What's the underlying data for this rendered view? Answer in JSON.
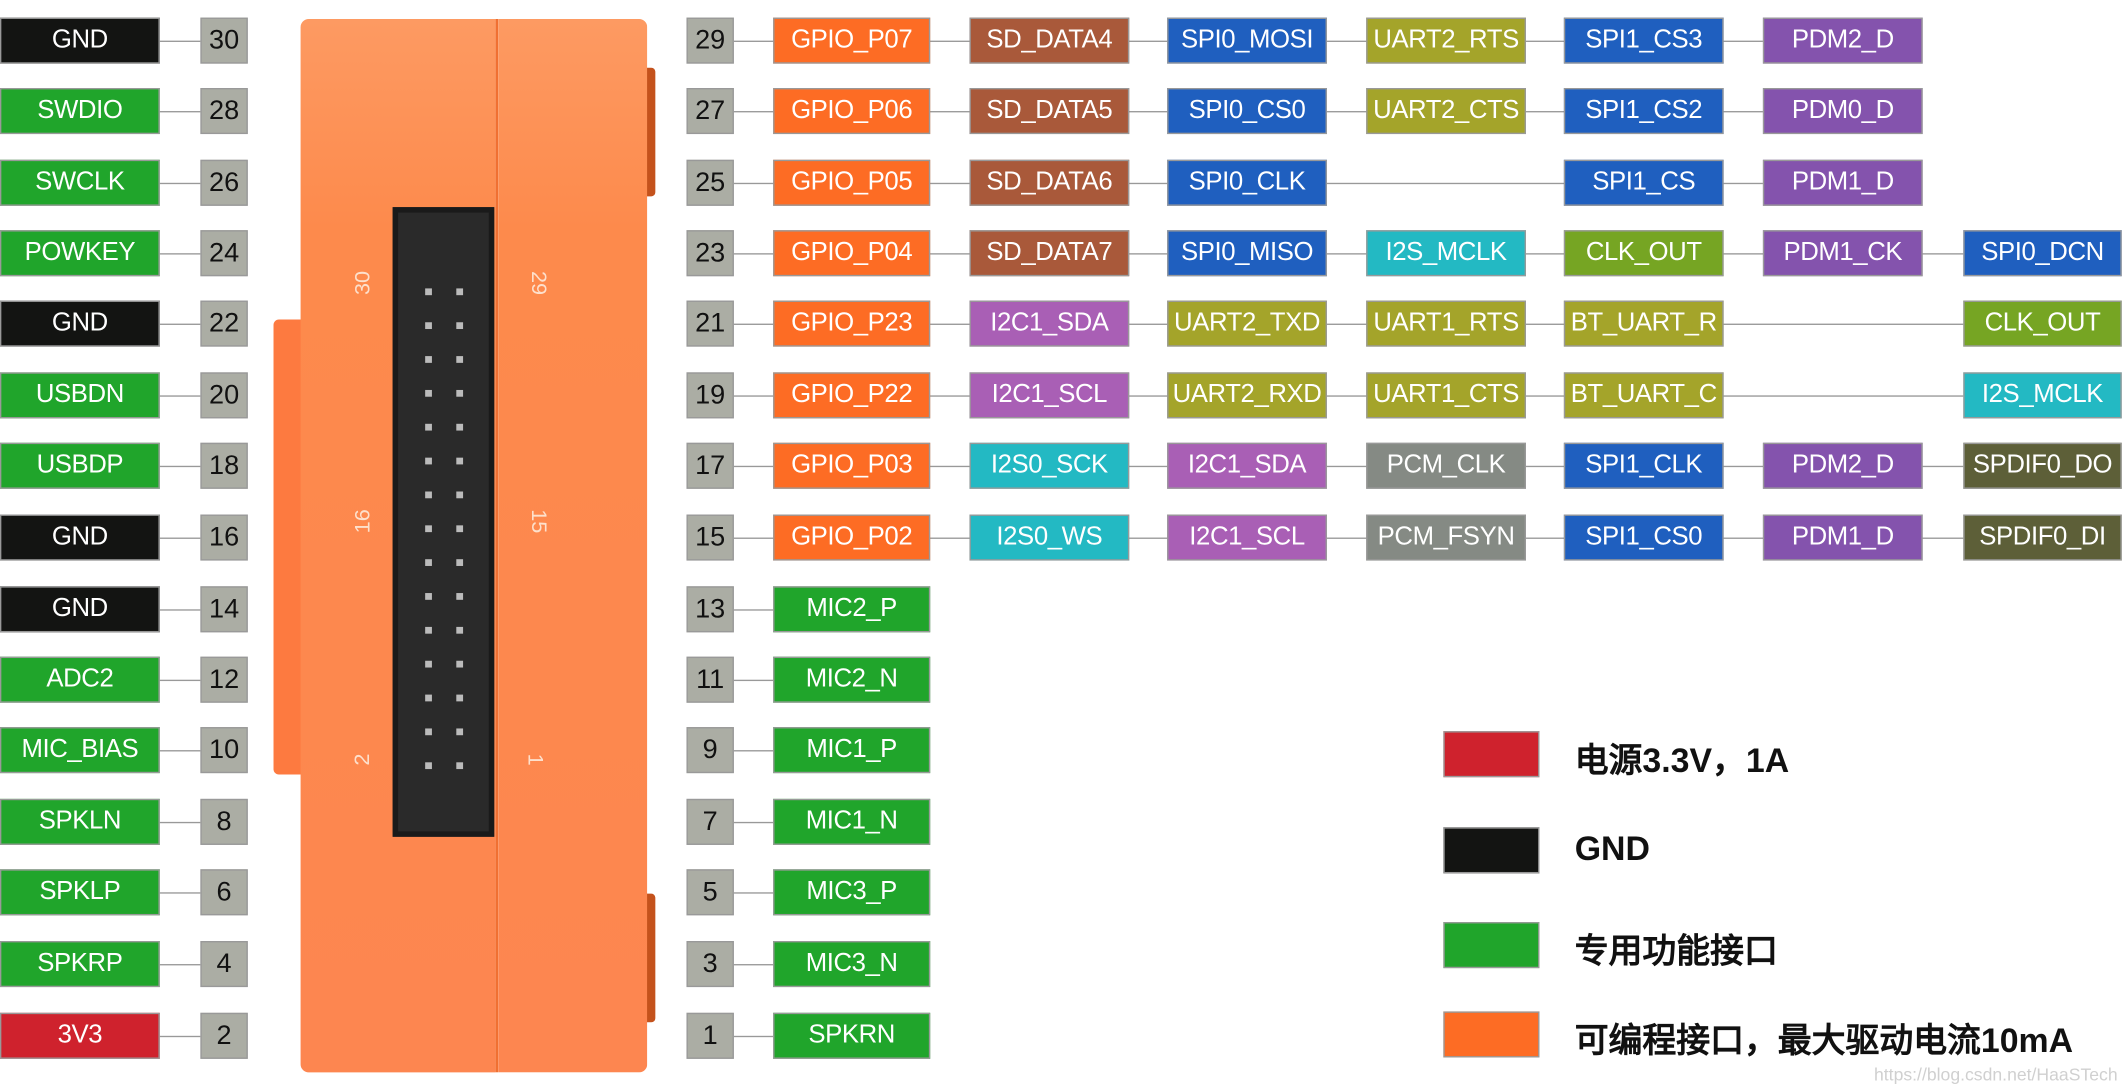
{
  "colors": {
    "orange": "#fd6c24",
    "brown": "#a9593a",
    "blue": "#1f5fbf",
    "olive": "#a4a42a",
    "purple": "#8453ad",
    "cyan": "#23b9c3",
    "lime": "#76a523",
    "violet": "#a95fb5",
    "gray": "#858a84",
    "darkolive": "#5d5f38",
    "green": "#20a52b",
    "black": "#131412",
    "red": "#cf222d"
  },
  "left_pins": [
    {
      "pin": "30",
      "label": "GND",
      "color": "black"
    },
    {
      "pin": "28",
      "label": "SWDIO",
      "color": "green"
    },
    {
      "pin": "26",
      "label": "SWCLK",
      "color": "green"
    },
    {
      "pin": "24",
      "label": "POWKEY",
      "color": "green"
    },
    {
      "pin": "22",
      "label": "GND",
      "color": "black"
    },
    {
      "pin": "20",
      "label": "USBDN",
      "color": "green"
    },
    {
      "pin": "18",
      "label": "USBDP",
      "color": "green"
    },
    {
      "pin": "16",
      "label": "GND",
      "color": "black"
    },
    {
      "pin": "14",
      "label": "GND",
      "color": "black"
    },
    {
      "pin": "12",
      "label": "ADC2",
      "color": "green"
    },
    {
      "pin": "10",
      "label": "MIC_BIAS",
      "color": "green"
    },
    {
      "pin": "8",
      "label": "SPKLN",
      "color": "green"
    },
    {
      "pin": "6",
      "label": "SPKLP",
      "color": "green"
    },
    {
      "pin": "4",
      "label": "SPKRP",
      "color": "green"
    },
    {
      "pin": "2",
      "label": "3V3",
      "color": "red"
    }
  ],
  "right_pins": [
    {
      "pin": "29",
      "functions": [
        [
          "GPIO_P07",
          "orange"
        ],
        [
          "SD_DATA4",
          "brown"
        ],
        [
          "SPI0_MOSI",
          "blue"
        ],
        [
          "UART2_RTS",
          "olive"
        ],
        [
          "SPI1_CS3",
          "blue"
        ],
        [
          "PDM2_D",
          "purple"
        ],
        null
      ]
    },
    {
      "pin": "27",
      "functions": [
        [
          "GPIO_P06",
          "orange"
        ],
        [
          "SD_DATA5",
          "brown"
        ],
        [
          "SPI0_CS0",
          "blue"
        ],
        [
          "UART2_CTS",
          "olive"
        ],
        [
          "SPI1_CS2",
          "blue"
        ],
        [
          "PDM0_D",
          "purple"
        ],
        null
      ]
    },
    {
      "pin": "25",
      "functions": [
        [
          "GPIO_P05",
          "orange"
        ],
        [
          "SD_DATA6",
          "brown"
        ],
        [
          "SPI0_CLK",
          "blue"
        ],
        null,
        [
          "SPI1_CS",
          "blue"
        ],
        [
          "PDM1_D",
          "purple"
        ],
        null
      ]
    },
    {
      "pin": "23",
      "functions": [
        [
          "GPIO_P04",
          "orange"
        ],
        [
          "SD_DATA7",
          "brown"
        ],
        [
          "SPI0_MISO",
          "blue"
        ],
        [
          "I2S_MCLK",
          "cyan"
        ],
        [
          "CLK_OUT",
          "lime"
        ],
        [
          "PDM1_CK",
          "purple"
        ],
        [
          "SPI0_DCN",
          "blue"
        ]
      ]
    },
    {
      "pin": "21",
      "functions": [
        [
          "GPIO_P23",
          "orange"
        ],
        [
          "I2C1_SDA",
          "violet"
        ],
        [
          "UART2_TXD",
          "olive"
        ],
        [
          "UART1_RTS",
          "olive"
        ],
        [
          "BT_UART_R",
          "olive"
        ],
        null,
        [
          "CLK_OUT",
          "lime"
        ]
      ]
    },
    {
      "pin": "19",
      "functions": [
        [
          "GPIO_P22",
          "orange"
        ],
        [
          "I2C1_SCL",
          "violet"
        ],
        [
          "UART2_RXD",
          "olive"
        ],
        [
          "UART1_CTS",
          "olive"
        ],
        [
          "BT_UART_C",
          "olive"
        ],
        null,
        [
          "I2S_MCLK",
          "cyan"
        ]
      ]
    },
    {
      "pin": "17",
      "functions": [
        [
          "GPIO_P03",
          "orange"
        ],
        [
          "I2S0_SCK",
          "cyan"
        ],
        [
          "I2C1_SDA",
          "violet"
        ],
        [
          "PCM_CLK",
          "gray"
        ],
        [
          "SPI1_CLK",
          "blue"
        ],
        [
          "PDM2_D",
          "purple"
        ],
        [
          "SPDIF0_DO",
          "darkolive"
        ]
      ]
    },
    {
      "pin": "15",
      "functions": [
        [
          "GPIO_P02",
          "orange"
        ],
        [
          "I2S0_WS",
          "cyan"
        ],
        [
          "I2C1_SCL",
          "violet"
        ],
        [
          "PCM_FSYN",
          "gray"
        ],
        [
          "SPI1_CS0",
          "blue"
        ],
        [
          "PDM1_D",
          "purple"
        ],
        [
          "SPDIF0_DI",
          "darkolive"
        ]
      ]
    },
    {
      "pin": "13",
      "functions": [
        [
          "MIC2_P",
          "green"
        ]
      ]
    },
    {
      "pin": "11",
      "functions": [
        [
          "MIC2_N",
          "green"
        ]
      ]
    },
    {
      "pin": "9",
      "functions": [
        [
          "MIC1_P",
          "green"
        ]
      ]
    },
    {
      "pin": "7",
      "functions": [
        [
          "MIC1_N",
          "green"
        ]
      ]
    },
    {
      "pin": "5",
      "functions": [
        [
          "MIC3_P",
          "green"
        ]
      ]
    },
    {
      "pin": "3",
      "functions": [
        [
          "MIC3_N",
          "green"
        ]
      ]
    },
    {
      "pin": "1",
      "functions": [
        [
          "SPKRN",
          "green"
        ]
      ]
    }
  ],
  "connector_labels": {
    "top_left": "30",
    "top_right": "29",
    "mid_left": "16",
    "mid_right": "15",
    "bottom_left": "2",
    "bottom_right": "1"
  },
  "legend": [
    {
      "color": "red",
      "text": "电源3.3V，1A"
    },
    {
      "color": "black",
      "text": "GND"
    },
    {
      "color": "green",
      "text": "专用功能接口"
    },
    {
      "color": "orange",
      "text": "可编程接口，最大驱动电流10mA"
    }
  ],
  "watermark": "https://blog.csdn.net/HaaSTech"
}
